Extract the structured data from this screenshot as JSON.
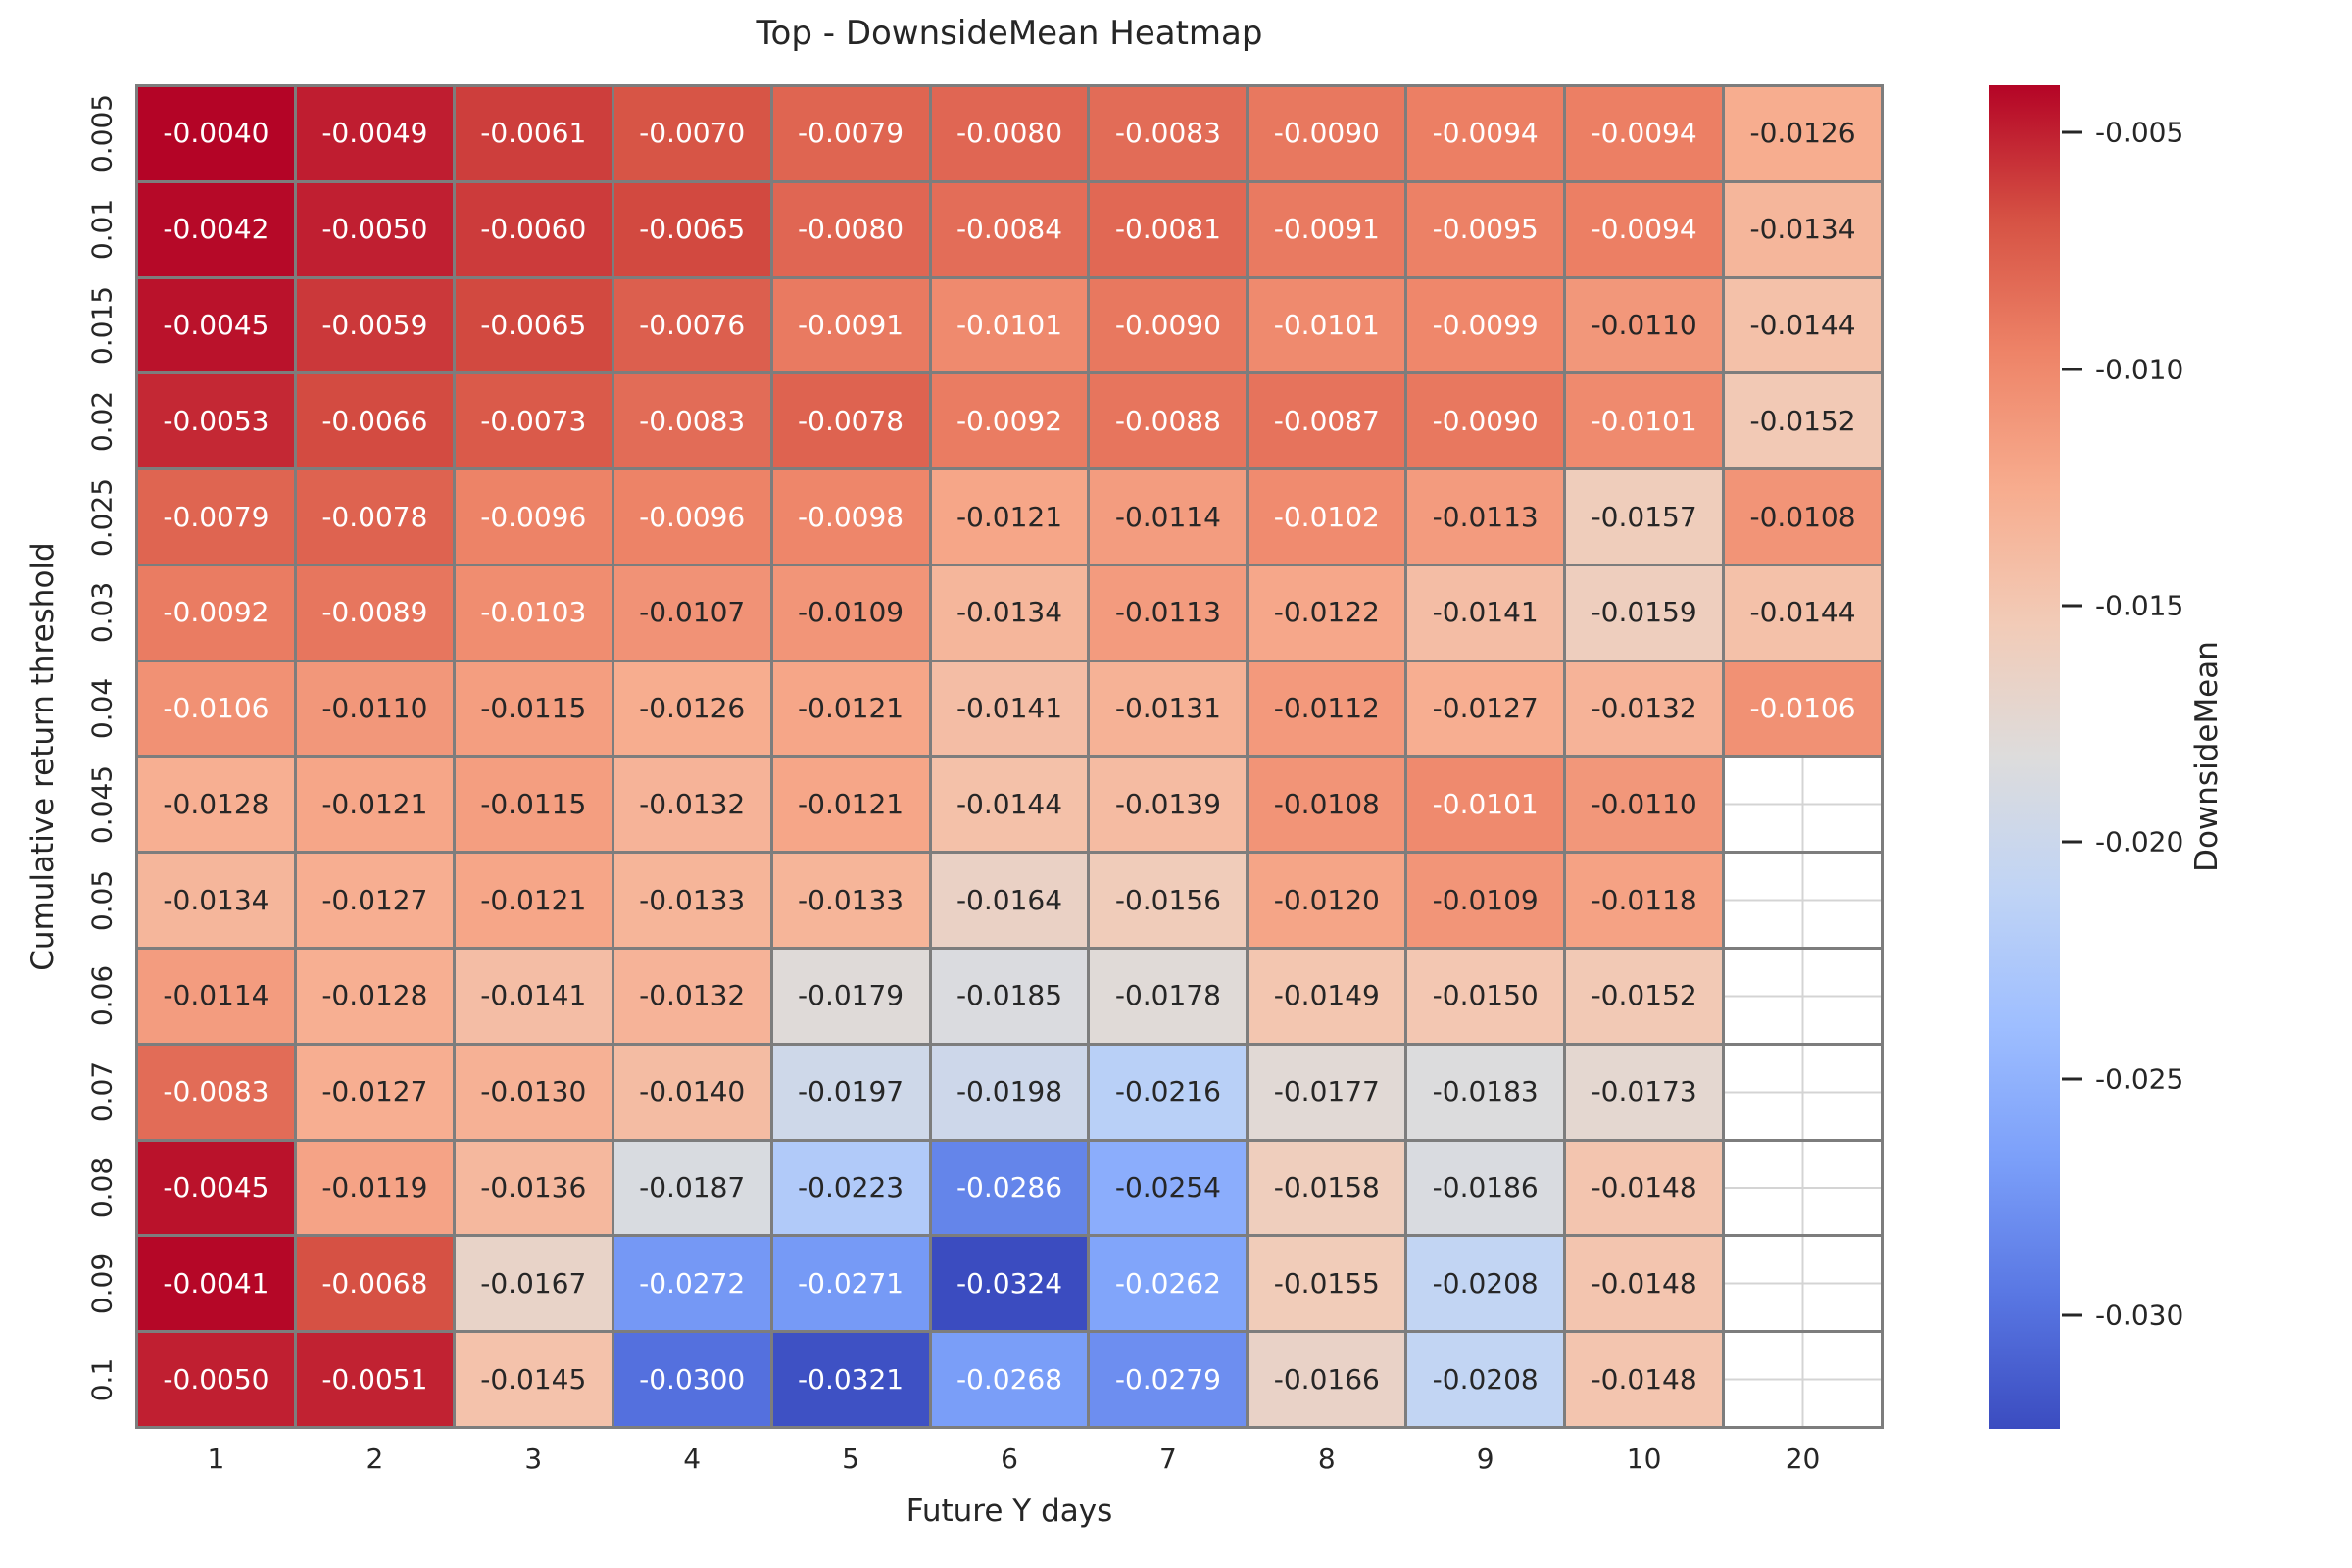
{
  "title": "Top - DownsideMean Heatmap",
  "x_axis": {
    "label": "Future Y days"
  },
  "y_axis": {
    "label": "Cumulative return threshold"
  },
  "colorbar": {
    "label": "DownsideMean",
    "tick_labels": [
      "-0.005",
      "-0.010",
      "-0.015",
      "-0.020",
      "-0.025",
      "-0.030"
    ],
    "tick_values": [
      -0.005,
      -0.01,
      -0.015,
      -0.02,
      -0.025,
      -0.03
    ]
  },
  "colors": {
    "grid_line": "#7d7d7d",
    "empty_cell_grid_line": "#d4d4d4",
    "background": "#ffffff",
    "annotation_dark": "#262626",
    "annotation_light": "#ffffff",
    "tick_text": "#262626",
    "colormap_name": "coolwarm",
    "colormap_anchors": [
      "#3b4cc0",
      "#5977e3",
      "#7b9ff9",
      "#9ebeff",
      "#c0d4f5",
      "#dddcdc",
      "#f2cbb7",
      "#f7ac8e",
      "#ee8468",
      "#d65244",
      "#b40426"
    ]
  },
  "chart_data": {
    "type": "heatmap",
    "title": "Top - DownsideMean Heatmap",
    "xlabel": "Future Y days",
    "ylabel": "Cumulative return threshold",
    "colorbar_label": "DownsideMean",
    "x_categories": [
      "1",
      "2",
      "3",
      "4",
      "5",
      "6",
      "7",
      "8",
      "9",
      "10",
      "20"
    ],
    "y_categories": [
      "0.005",
      "0.01",
      "0.015",
      "0.02",
      "0.025",
      "0.03",
      "0.04",
      "0.045",
      "0.05",
      "0.06",
      "0.07",
      "0.08",
      "0.09",
      "0.1"
    ],
    "vmin": -0.0324,
    "vmax": -0.004,
    "value_format_decimals": 4,
    "grid": "cell borders gray; empty cells white with light gridlines at cell centers",
    "legend_position": "right colorbar",
    "values": [
      [
        -0.004,
        -0.0049,
        -0.0061,
        -0.007,
        -0.0079,
        -0.008,
        -0.0083,
        -0.009,
        -0.0094,
        -0.0094,
        -0.0126
      ],
      [
        -0.0042,
        -0.005,
        -0.006,
        -0.0065,
        -0.008,
        -0.0084,
        -0.0081,
        -0.0091,
        -0.0095,
        -0.0094,
        -0.0134
      ],
      [
        -0.0045,
        -0.0059,
        -0.0065,
        -0.0076,
        -0.0091,
        -0.0101,
        -0.009,
        -0.0101,
        -0.0099,
        -0.011,
        -0.0144
      ],
      [
        -0.0053,
        -0.0066,
        -0.0073,
        -0.0083,
        -0.0078,
        -0.0092,
        -0.0088,
        -0.0087,
        -0.009,
        -0.0101,
        -0.0152
      ],
      [
        -0.0079,
        -0.0078,
        -0.0096,
        -0.0096,
        -0.0098,
        -0.0121,
        -0.0114,
        -0.0102,
        -0.0113,
        -0.0157,
        -0.0108
      ],
      [
        -0.0092,
        -0.0089,
        -0.0103,
        -0.0107,
        -0.0109,
        -0.0134,
        -0.0113,
        -0.0122,
        -0.0141,
        -0.0159,
        -0.0144
      ],
      [
        -0.0106,
        -0.011,
        -0.0115,
        -0.0126,
        -0.0121,
        -0.0141,
        -0.0131,
        -0.0112,
        -0.0127,
        -0.0132,
        -0.0106
      ],
      [
        -0.0128,
        -0.0121,
        -0.0115,
        -0.0132,
        -0.0121,
        -0.0144,
        -0.0139,
        -0.0108,
        -0.0101,
        -0.011,
        null
      ],
      [
        -0.0134,
        -0.0127,
        -0.0121,
        -0.0133,
        -0.0133,
        -0.0164,
        -0.0156,
        -0.012,
        -0.0109,
        -0.0118,
        null
      ],
      [
        -0.0114,
        -0.0128,
        -0.0141,
        -0.0132,
        -0.0179,
        -0.0185,
        -0.0178,
        -0.0149,
        -0.015,
        -0.0152,
        null
      ],
      [
        -0.0083,
        -0.0127,
        -0.013,
        -0.014,
        -0.0197,
        -0.0198,
        -0.0216,
        -0.0177,
        -0.0183,
        -0.0173,
        null
      ],
      [
        -0.0045,
        -0.0119,
        -0.0136,
        -0.0187,
        -0.0223,
        -0.0286,
        -0.0254,
        -0.0158,
        -0.0186,
        -0.0148,
        null
      ],
      [
        -0.0041,
        -0.0068,
        -0.0167,
        -0.0272,
        -0.0271,
        -0.0324,
        -0.0262,
        -0.0155,
        -0.0208,
        -0.0148,
        null
      ],
      [
        -0.005,
        -0.0051,
        -0.0145,
        -0.03,
        -0.0321,
        -0.0268,
        -0.0279,
        -0.0166,
        -0.0208,
        -0.0148,
        null
      ]
    ]
  }
}
